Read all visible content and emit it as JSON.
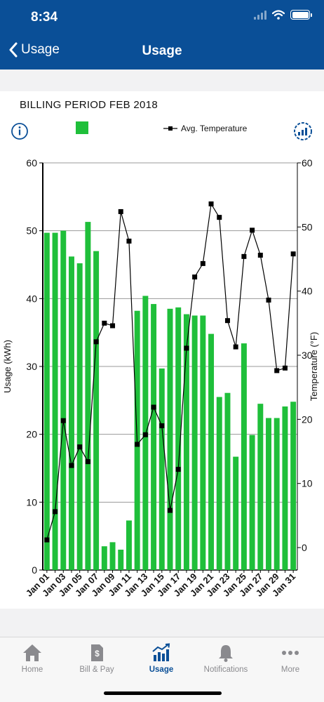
{
  "status": {
    "time": "8:34"
  },
  "nav": {
    "back_label": "Usage",
    "title": "Usage"
  },
  "billing_period": "BILLING PERIOD FEB 2018",
  "legend": {
    "series_line": "Avg. Temperature"
  },
  "colors": {
    "header": "#0a4f97",
    "bar": "#1fbf3a",
    "line": "#000000",
    "active_tab": "#0a4f97"
  },
  "chart_data": {
    "type": "bar",
    "categories": [
      "Jan 01",
      "Jan 02",
      "Jan 03",
      "Jan 04",
      "Jan 05",
      "Jan 06",
      "Jan 07",
      "Jan 08",
      "Jan 09",
      "Jan 10",
      "Jan 11",
      "Jan 12",
      "Jan 13",
      "Jan 14",
      "Jan 15",
      "Jan 16",
      "Jan 17",
      "Jan 18",
      "Jan 19",
      "Jan 20",
      "Jan 21",
      "Jan 22",
      "Jan 23",
      "Jan 24",
      "Jan 25",
      "Jan 26",
      "Jan 27",
      "Jan 28",
      "Jan 29",
      "Jan 30",
      "Jan 31"
    ],
    "xtick_labels": [
      "Jan 01",
      "Jan 03",
      "Jan 05",
      "Jan 07",
      "Jan 09",
      "Jan 11",
      "Jan 13",
      "Jan 15",
      "Jan 17",
      "Jan 19",
      "Jan 21",
      "Jan 23",
      "Jan 25",
      "Jan 27",
      "Jan 29",
      "Jan 31"
    ],
    "series": [
      {
        "type": "bar",
        "axis": "left",
        "values": [
          49.7,
          49.7,
          50.0,
          46.2,
          45.2,
          51.3,
          47.0,
          3.5,
          4.1,
          3.0,
          7.3,
          38.2,
          40.4,
          39.2,
          29.7,
          38.5,
          38.7,
          37.7,
          37.5,
          37.5,
          34.8,
          25.5,
          26.1,
          16.7,
          33.4,
          19.9,
          24.5,
          22.4,
          22.4,
          24.1,
          24.8
        ]
      },
      {
        "name": "Avg. Temperature",
        "type": "line",
        "axis": "right",
        "values": [
          1.2,
          5.6,
          19.8,
          12.8,
          15.7,
          13.4,
          32.1,
          35.0,
          34.6,
          52.4,
          47.8,
          16.1,
          17.6,
          21.9,
          19.0,
          5.8,
          12.2,
          31.1,
          42.2,
          44.3,
          53.6,
          51.5,
          35.4,
          31.3,
          45.4,
          49.5,
          45.6,
          38.6,
          27.6,
          28.0,
          45.8
        ]
      }
    ],
    "ylabel": "Usage (kWh)",
    "y2label": "Temperature (°F)",
    "ylim": [
      0,
      60
    ],
    "y2lim": [
      -3.5,
      60
    ],
    "yticks": [
      0,
      10,
      20,
      30,
      40,
      50,
      60
    ],
    "y2ticks": [
      0,
      10,
      20,
      30,
      40,
      50,
      60
    ],
    "grid": true,
    "legend_placement": "top"
  },
  "tabs": [
    {
      "label": "Home",
      "icon": "home-icon"
    },
    {
      "label": "Bill & Pay",
      "icon": "bill-icon"
    },
    {
      "label": "Usage",
      "icon": "usage-chart-icon"
    },
    {
      "label": "Notifications",
      "icon": "bell-icon"
    },
    {
      "label": "More",
      "icon": "more-icon"
    }
  ]
}
